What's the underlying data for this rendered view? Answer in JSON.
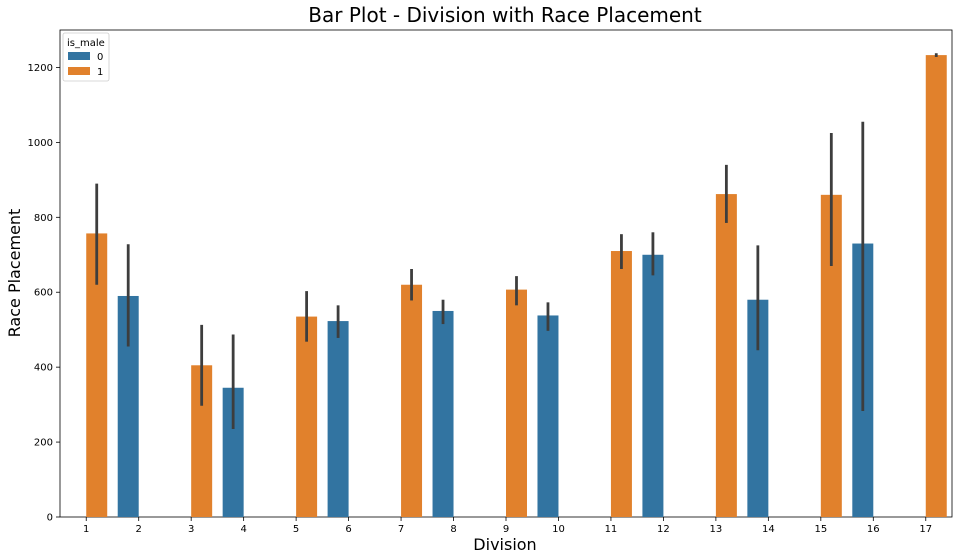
{
  "chart_data": {
    "type": "bar",
    "title": "Bar Plot - Division with Race Placement",
    "xlabel": "Division",
    "ylabel": "Race Placement",
    "ylim": [
      0,
      1300
    ],
    "yticks": [
      0,
      200,
      400,
      600,
      800,
      1000,
      1200
    ],
    "categories": [
      "1",
      "2",
      "3",
      "4",
      "5",
      "6",
      "7",
      "8",
      "9",
      "10",
      "11",
      "12",
      "13",
      "14",
      "15",
      "16",
      "17"
    ],
    "grid": false,
    "legend": {
      "title": "is_male",
      "position": "top-left"
    },
    "series": [
      {
        "name": "0",
        "color": "#3274a1",
        "values": [
          null,
          590,
          null,
          345,
          null,
          523,
          null,
          550,
          null,
          538,
          null,
          700,
          null,
          580,
          null,
          730,
          null
        ],
        "error_low": [
          null,
          455,
          null,
          235,
          null,
          478,
          null,
          515,
          null,
          497,
          null,
          645,
          null,
          445,
          null,
          283,
          null
        ],
        "error_high": [
          null,
          728,
          null,
          487,
          null,
          565,
          null,
          580,
          null,
          573,
          null,
          760,
          null,
          725,
          null,
          1055,
          null
        ]
      },
      {
        "name": "1",
        "color": "#e1812c",
        "values": [
          757,
          null,
          405,
          null,
          535,
          null,
          620,
          null,
          607,
          null,
          710,
          null,
          862,
          null,
          860,
          null,
          1233
        ],
        "error_low": [
          620,
          null,
          297,
          null,
          468,
          null,
          578,
          null,
          565,
          null,
          662,
          null,
          785,
          null,
          670,
          null,
          1228
        ],
        "error_high": [
          890,
          null,
          513,
          null,
          603,
          null,
          662,
          null,
          643,
          null,
          755,
          null,
          940,
          null,
          1025,
          null,
          1238
        ]
      }
    ]
  }
}
